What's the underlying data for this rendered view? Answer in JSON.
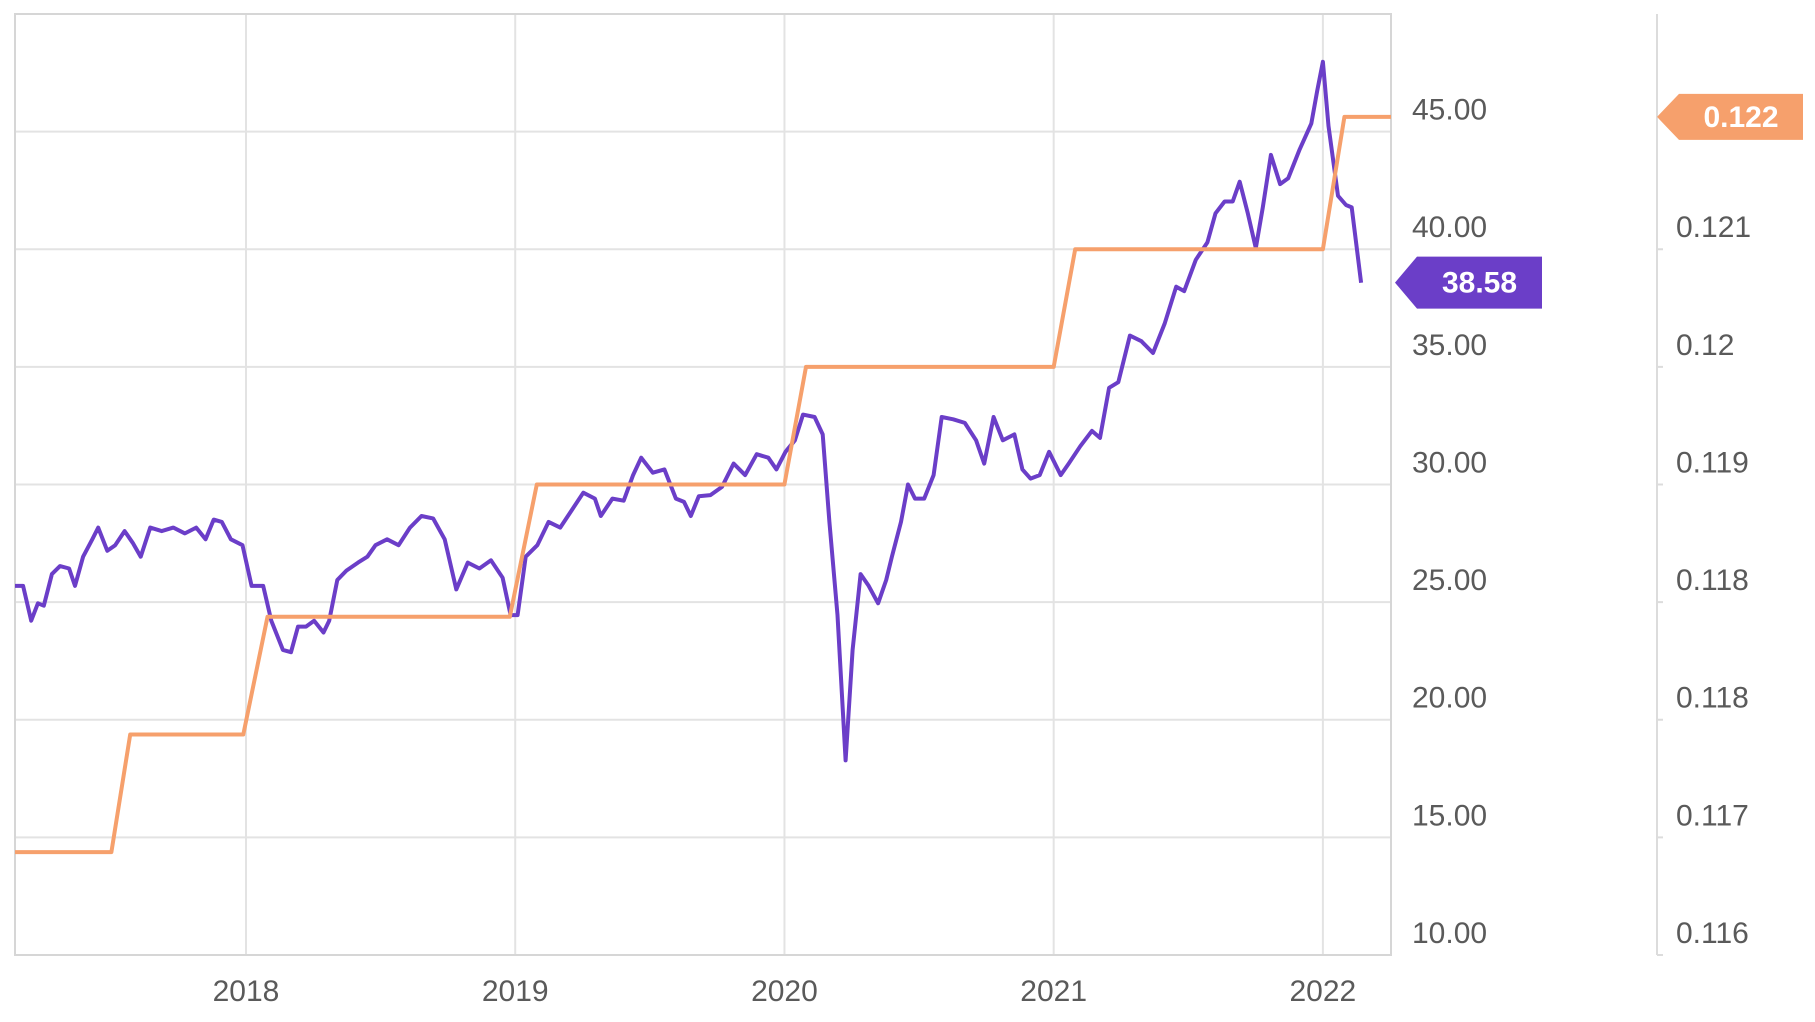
{
  "chart_data": {
    "type": "line",
    "xlim": [
      2017.142,
      2022.253
    ],
    "xticks": [
      2018,
      2019,
      2020,
      2021,
      2022
    ],
    "ylim": [
      10,
      50
    ],
    "yticks": [
      {
        "value": 10,
        "label": "10.00"
      },
      {
        "value": 15,
        "label": "15.00"
      },
      {
        "value": 20,
        "label": "20.00"
      },
      {
        "value": 25,
        "label": "25.00"
      },
      {
        "value": 30,
        "label": "30.00"
      },
      {
        "value": 35,
        "label": "35.00"
      },
      {
        "value": 40,
        "label": "40.00"
      },
      {
        "value": 45,
        "label": "45.00"
      }
    ],
    "y2lim": [
      0.116,
      0.1224
    ],
    "y2ticks": [
      0.116,
      {
        "value": 0.1168,
        "label": "0.117"
      },
      {
        "value": 0.1176,
        "label": "0.118"
      },
      {
        "value": 0.1184,
        "label": "0.118"
      },
      {
        "value": 0.1192,
        "label": "0.119"
      },
      0.12,
      {
        "value": 0.1208,
        "label": "0.121"
      }
    ],
    "grid": true,
    "series": [
      {
        "color": "#6b3ec8",
        "x": [
          2017.142,
          2017.172,
          2017.202,
          2017.227,
          2017.249,
          2017.279,
          2017.309,
          2017.343,
          2017.365,
          2017.395,
          2017.429,
          2017.451,
          2017.485,
          2017.514,
          2017.549,
          2017.579,
          2017.609,
          2017.644,
          2017.687,
          2017.73,
          2017.773,
          2017.815,
          2017.85,
          2017.88,
          2017.91,
          2017.944,
          2017.987,
          2018.021,
          2018.064,
          2018.094,
          2018.137,
          2018.167,
          2018.193,
          2018.223,
          2018.253,
          2018.288,
          2018.309,
          2018.339,
          2018.373,
          2018.416,
          2018.451,
          2018.481,
          2018.524,
          2018.567,
          2018.609,
          2018.652,
          2018.695,
          2018.738,
          2018.781,
          2018.824,
          2018.867,
          2018.91,
          2018.953,
          2018.983,
          2019.009,
          2019.039,
          2019.082,
          2019.124,
          2019.167,
          2019.21,
          2019.253,
          2019.296,
          2019.318,
          2019.361,
          2019.403,
          2019.438,
          2019.468,
          2019.511,
          2019.554,
          2019.597,
          2019.627,
          2019.652,
          2019.682,
          2019.725,
          2019.768,
          2019.811,
          2019.854,
          2019.897,
          2019.94,
          2019.97,
          2020.004,
          2020.039,
          2020.069,
          2020.112,
          2020.142,
          2020.167,
          2020.197,
          2020.227,
          2020.253,
          2020.283,
          2020.313,
          2020.348,
          2020.378,
          2020.399,
          2020.433,
          2020.459,
          2020.485,
          2020.519,
          2020.554,
          2020.584,
          2020.627,
          2020.67,
          2020.712,
          2020.742,
          2020.777,
          2020.811,
          2020.854,
          2020.884,
          2020.914,
          2020.948,
          2020.983,
          2021.026,
          2021.056,
          2021.099,
          2021.142,
          2021.172,
          2021.206,
          2021.24,
          2021.283,
          2021.326,
          2021.369,
          2021.412,
          2021.455,
          2021.485,
          2021.528,
          2021.571,
          2021.601,
          2021.635,
          2021.665,
          2021.691,
          2021.721,
          2021.751,
          2021.777,
          2021.807,
          2021.841,
          2021.871,
          2021.914,
          2021.957,
          2021.979,
          2022.0,
          2022.021,
          2022.056,
          2022.086,
          2022.107,
          2022.142
        ],
        "values": [
          25.69,
          25.69,
          24.21,
          24.95,
          24.85,
          26.19,
          26.53,
          26.43,
          25.69,
          26.93,
          27.67,
          28.17,
          27.18,
          27.42,
          28.02,
          27.52,
          26.93,
          28.17,
          28.02,
          28.17,
          27.92,
          28.17,
          27.67,
          28.51,
          28.41,
          27.67,
          27.42,
          25.69,
          25.69,
          24.21,
          22.97,
          22.87,
          23.96,
          23.96,
          24.21,
          23.71,
          24.21,
          25.94,
          26.34,
          26.68,
          26.93,
          27.42,
          27.67,
          27.42,
          28.17,
          28.66,
          28.56,
          27.67,
          25.54,
          26.68,
          26.43,
          26.78,
          26.04,
          24.45,
          24.45,
          26.93,
          27.42,
          28.41,
          28.17,
          28.91,
          29.65,
          29.4,
          28.66,
          29.4,
          29.31,
          30.4,
          31.14,
          30.5,
          30.64,
          29.4,
          29.26,
          28.66,
          29.5,
          29.55,
          29.9,
          30.89,
          30.4,
          31.29,
          31.14,
          30.64,
          31.39,
          31.88,
          32.97,
          32.87,
          32.13,
          28.41,
          24.45,
          18.27,
          22.97,
          26.19,
          25.69,
          24.95,
          25.94,
          26.93,
          28.41,
          30.0,
          29.4,
          29.4,
          30.4,
          32.87,
          32.77,
          32.62,
          31.88,
          30.89,
          32.87,
          31.88,
          32.13,
          30.64,
          30.25,
          30.4,
          31.39,
          30.4,
          30.89,
          31.63,
          32.28,
          31.98,
          34.11,
          34.35,
          36.33,
          36.09,
          35.59,
          36.83,
          38.41,
          38.22,
          39.55,
          40.29,
          41.53,
          42.03,
          42.03,
          42.87,
          41.53,
          40.05,
          41.78,
          44.01,
          42.77,
          43.02,
          44.25,
          45.34,
          46.73,
          47.97,
          45.24,
          42.27,
          41.88,
          41.78,
          38.58
        ]
      },
      {
        "color": "#f6a06c",
        "axis": "y2",
        "x": [
          2017.142,
          2017.5,
          2017.57,
          2017.99,
          2018.08,
          2018.98,
          2019.08,
          2020.0,
          2020.08,
          2021.0,
          2021.08,
          2022.0,
          2022.08,
          2022.253
        ],
        "values": [
          0.1167,
          0.1167,
          0.1175,
          0.1175,
          0.1183,
          0.1183,
          0.1192,
          0.1192,
          0.12,
          0.12,
          0.1208,
          0.1208,
          0.1217,
          0.1217
        ],
        "value_labels": [
          null,
          null,
          null,
          null,
          null,
          null,
          null,
          null,
          null,
          null,
          null,
          null,
          null,
          "0.122"
        ]
      }
    ]
  }
}
